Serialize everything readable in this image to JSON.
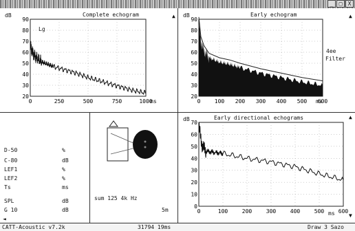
{
  "window": {
    "title": "",
    "buttons": [
      "_",
      "□",
      "X"
    ]
  },
  "complete_echogram": {
    "title": "Complete echogram",
    "unit_label": "dB",
    "x_unit": "ms",
    "marker_label": "Lg",
    "chart_data": {
      "type": "line",
      "title": "Complete echogram",
      "ylabel": "dB",
      "xlabel": "ms",
      "x_ticks": [
        0,
        250,
        500,
        750,
        1000
      ],
      "y_ticks": [
        20,
        30,
        40,
        50,
        60,
        70,
        80,
        90
      ],
      "xlim": [
        0,
        1000
      ],
      "ylim": [
        20,
        90
      ],
      "series": [
        {
          "x": [
            0,
            20,
            50,
            100,
            150,
            200,
            300,
            400,
            500,
            600,
            700,
            800,
            900,
            1000
          ],
          "y": [
            66,
            60,
            55,
            51,
            49,
            47,
            44,
            41,
            37,
            34,
            31,
            28,
            25,
            23
          ]
        }
      ]
    }
  },
  "early_echogram": {
    "title": "Early echogram",
    "unit_label": "dB",
    "x_unit": "ms",
    "side_label_1": "4ee",
    "side_label_2": "Filter",
    "chart_data": {
      "type": "area",
      "title": "Early echogram",
      "ylabel": "dB",
      "xlabel": "ms",
      "x_ticks": [
        0,
        100,
        200,
        300,
        400,
        500,
        600
      ],
      "y_ticks": [
        20,
        30,
        40,
        50,
        60,
        70,
        80,
        90
      ],
      "xlim": [
        0,
        600
      ],
      "ylim": [
        20,
        90
      ],
      "series": [
        {
          "x": [
            0,
            10,
            25,
            50,
            100,
            150,
            200,
            300,
            400,
            500,
            600
          ],
          "y": [
            88,
            70,
            62,
            55,
            51,
            49,
            46,
            41,
            37,
            33,
            30
          ]
        }
      ]
    }
  },
  "parameters": {
    "rows": [
      {
        "name": "D-50",
        "unit": "%"
      },
      {
        "name": "C-80",
        "unit": "dB"
      },
      {
        "name": "LEF1",
        "unit": "%"
      },
      {
        "name": "LEF2",
        "unit": "%"
      },
      {
        "name": "Ts",
        "unit": "ms"
      },
      {
        "name": "SPL",
        "unit": "dB"
      },
      {
        "name": "G 10",
        "unit": "dB"
      }
    ]
  },
  "directional": {
    "legend_label": "",
    "band_label": "sum 125 4k Hz",
    "corner_label": "5m"
  },
  "early_directional": {
    "title": "Early directional echograms",
    "unit_label": "dB",
    "x_unit": "ms",
    "chart_data": {
      "type": "line",
      "title": "Early directional echograms",
      "ylabel": "dB",
      "xlabel": "ms",
      "x_ticks": [
        0,
        100,
        200,
        300,
        400,
        500,
        600
      ],
      "y_ticks": [
        0,
        10,
        20,
        30,
        40,
        50,
        60,
        70
      ],
      "xlim": [
        0,
        600
      ],
      "ylim": [
        0,
        70
      ],
      "series": [
        {
          "x": [
            0,
            5,
            15,
            30,
            60,
            100,
            200,
            300,
            400,
            500,
            600
          ],
          "y": [
            68,
            60,
            50,
            46,
            45,
            44,
            40,
            37,
            33,
            27,
            22
          ]
        }
      ]
    }
  },
  "status": {
    "app": "CATT-Acoustic v7.2k",
    "counter": "31794 19ms",
    "right_label": "Draw 3 Sazo"
  }
}
